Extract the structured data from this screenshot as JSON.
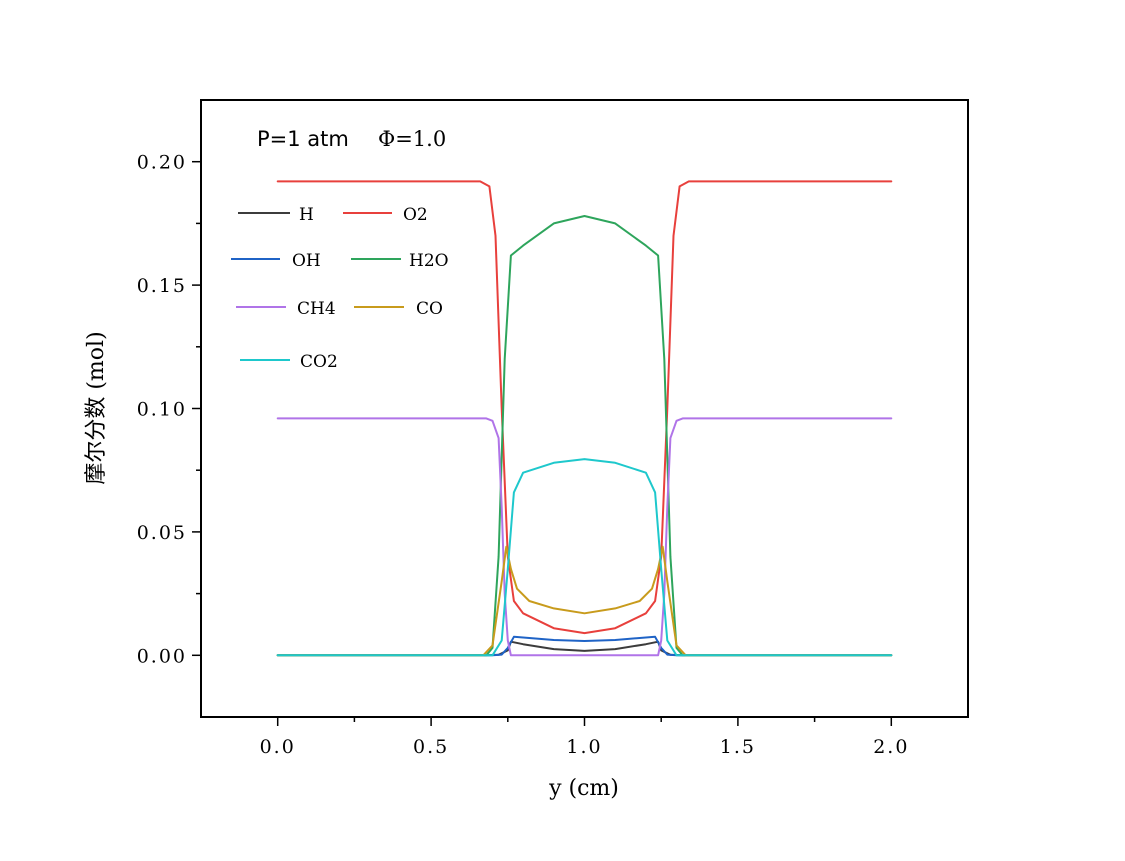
{
  "chart_data": {
    "type": "line",
    "title": "",
    "annotation": {
      "pressure": "P=1 atm",
      "equivalence_ratio": "Φ=1.0"
    },
    "xlabel": "y (cm)",
    "ylabel": "摩尔分数 (mol)",
    "xlim": [
      -0.25,
      2.25
    ],
    "ylim": [
      -0.025,
      0.225
    ],
    "xticks": [
      0.0,
      0.5,
      1.0,
      1.5,
      2.0
    ],
    "xtick_labels": [
      "0.0",
      "0.5",
      "1.0",
      "1.5",
      "2.0"
    ],
    "yticks": [
      0.0,
      0.05,
      0.1,
      0.15,
      0.2
    ],
    "ytick_labels": [
      "0.00",
      "0.05",
      "0.10",
      "0.15",
      "0.20"
    ],
    "grid": false,
    "legend_position": "upper-left",
    "series": [
      {
        "name": "H",
        "color": "#3c3c3c",
        "x": [
          0.0,
          0.68,
          0.72,
          0.75,
          0.76,
          0.8,
          0.9,
          1.0,
          1.1,
          1.2,
          1.24,
          1.25,
          1.28,
          1.32,
          2.0
        ],
        "values": [
          0.0,
          0.0,
          0.0002,
          0.002,
          0.0055,
          0.0045,
          0.0025,
          0.0018,
          0.0025,
          0.0045,
          0.0055,
          0.002,
          0.0002,
          0.0,
          0.0
        ]
      },
      {
        "name": "O2",
        "color": "#e8403c",
        "x": [
          0.0,
          0.66,
          0.69,
          0.71,
          0.73,
          0.75,
          0.77,
          0.8,
          0.9,
          1.0,
          1.1,
          1.2,
          1.23,
          1.25,
          1.27,
          1.29,
          1.31,
          1.34,
          2.0
        ],
        "values": [
          0.192,
          0.192,
          0.19,
          0.17,
          0.1,
          0.04,
          0.022,
          0.017,
          0.011,
          0.009,
          0.011,
          0.017,
          0.022,
          0.04,
          0.1,
          0.17,
          0.19,
          0.192,
          0.192
        ]
      },
      {
        "name": "OH",
        "color": "#1f63c6",
        "x": [
          0.0,
          0.7,
          0.73,
          0.75,
          0.77,
          0.8,
          0.9,
          1.0,
          1.1,
          1.2,
          1.23,
          1.25,
          1.27,
          1.3,
          2.0
        ],
        "values": [
          0.0,
          0.0,
          0.0003,
          0.003,
          0.0075,
          0.0072,
          0.0062,
          0.0058,
          0.0062,
          0.0072,
          0.0075,
          0.003,
          0.0003,
          0.0,
          0.0
        ]
      },
      {
        "name": "H2O",
        "color": "#2ea55c",
        "x": [
          0.0,
          0.68,
          0.7,
          0.72,
          0.74,
          0.76,
          0.8,
          0.9,
          1.0,
          1.1,
          1.2,
          1.24,
          1.26,
          1.28,
          1.3,
          1.32,
          2.0
        ],
        "values": [
          0.0,
          0.0,
          0.003,
          0.04,
          0.12,
          0.162,
          0.166,
          0.175,
          0.178,
          0.175,
          0.166,
          0.162,
          0.12,
          0.04,
          0.003,
          0.0,
          0.0
        ]
      },
      {
        "name": "CH4",
        "color": "#b074e8",
        "x": [
          0.0,
          0.68,
          0.7,
          0.72,
          0.73,
          0.74,
          0.75,
          0.76,
          1.24,
          1.25,
          1.26,
          1.27,
          1.28,
          1.3,
          1.32,
          2.0
        ],
        "values": [
          0.096,
          0.096,
          0.095,
          0.088,
          0.06,
          0.025,
          0.006,
          0.0,
          0.0,
          0.006,
          0.025,
          0.06,
          0.088,
          0.095,
          0.096,
          0.096
        ]
      },
      {
        "name": "CO",
        "color": "#c89b1c",
        "x": [
          0.0,
          0.67,
          0.7,
          0.73,
          0.745,
          0.76,
          0.78,
          0.82,
          0.9,
          1.0,
          1.1,
          1.18,
          1.22,
          1.24,
          1.255,
          1.27,
          1.3,
          1.33,
          2.0
        ],
        "values": [
          0.0,
          0.0,
          0.004,
          0.03,
          0.044,
          0.035,
          0.027,
          0.022,
          0.019,
          0.017,
          0.019,
          0.022,
          0.027,
          0.035,
          0.044,
          0.03,
          0.004,
          0.0,
          0.0
        ]
      },
      {
        "name": "CO2",
        "color": "#1ec8cc",
        "x": [
          0.0,
          0.7,
          0.73,
          0.75,
          0.77,
          0.8,
          0.9,
          1.0,
          1.1,
          1.2,
          1.23,
          1.25,
          1.27,
          1.3,
          2.0
        ],
        "values": [
          0.0,
          0.0,
          0.006,
          0.035,
          0.066,
          0.074,
          0.078,
          0.0795,
          0.078,
          0.074,
          0.066,
          0.035,
          0.006,
          0.0,
          0.0
        ]
      }
    ]
  }
}
